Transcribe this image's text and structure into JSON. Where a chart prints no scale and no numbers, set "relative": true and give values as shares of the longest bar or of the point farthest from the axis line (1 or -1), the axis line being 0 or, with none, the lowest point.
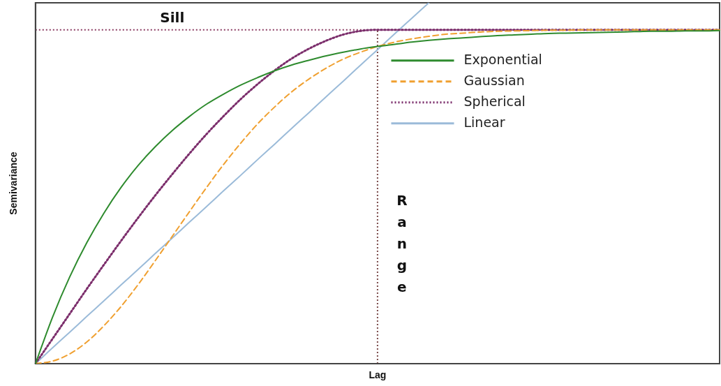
{
  "chart_data": {
    "type": "line",
    "relative": true,
    "xlabel": "Lag",
    "ylabel": "Semivariance",
    "grid": false,
    "marker": "none",
    "legend": "top right",
    "categories": [
      null,
      null,
      null,
      null,
      null,
      null,
      null,
      null,
      null,
      null,
      null,
      null,
      null,
      null,
      null,
      null,
      null,
      null,
      null,
      null,
      null,
      null,
      null,
      null,
      null,
      null,
      null,
      null,
      null,
      null,
      null,
      null,
      null,
      null,
      null,
      null,
      null,
      null,
      null,
      null,
      null
    ],
    "series": [
      {
        "name": "Exponential",
        "color": "#2e8b2e",
        "line_style": "solid",
        "values": [
          0,
          0.129,
          0.24,
          0.335,
          0.417,
          0.488,
          0.549,
          0.601,
          0.646,
          0.685,
          0.719,
          0.747,
          0.772,
          0.793,
          0.812,
          0.828,
          0.841,
          0.853,
          0.863,
          0.872,
          0.879,
          0.885,
          0.891,
          0.896,
          0.9,
          0.903,
          0.906,
          0.909,
          0.911,
          0.913,
          0.915,
          0.916,
          0.917,
          0.918,
          0.919,
          0.92,
          0.921,
          0.921,
          0.922,
          0.922,
          0.923
        ]
      },
      {
        "name": "Gaussian",
        "color": "#f0a030",
        "line_style": "dashed",
        "values": [
          0,
          0.007,
          0.027,
          0.06,
          0.105,
          0.158,
          0.219,
          0.285,
          0.353,
          0.421,
          0.488,
          0.552,
          0.611,
          0.665,
          0.712,
          0.754,
          0.789,
          0.819,
          0.844,
          0.863,
          0.879,
          0.891,
          0.9,
          0.907,
          0.913,
          0.916,
          0.919,
          0.921,
          0.922,
          0.923,
          0.924,
          0.924,
          0.925,
          0.925,
          0.925,
          0.925,
          0.925,
          0.925,
          0.925,
          0.925,
          0.925
        ]
      },
      {
        "name": "Spherical",
        "color": "#7b2d6b",
        "line_style": "dotted",
        "values": [
          0,
          0.069,
          0.138,
          0.207,
          0.274,
          0.34,
          0.404,
          0.466,
          0.525,
          0.582,
          0.636,
          0.686,
          0.733,
          0.775,
          0.813,
          0.846,
          0.873,
          0.895,
          0.912,
          0.922,
          0.925,
          0.925,
          0.925,
          0.925,
          0.925,
          0.925,
          0.925,
          0.925,
          0.925,
          0.925,
          0.925,
          0.925,
          0.925,
          0.925,
          0.925,
          0.925,
          0.925,
          0.925,
          0.925,
          0.925,
          0.925
        ]
      },
      {
        "name": "Linear",
        "color": "#9bbbd9",
        "line_style": "solid",
        "values": [
          0,
          0.044,
          0.087,
          0.131,
          0.174,
          0.218,
          0.261,
          0.305,
          0.348,
          0.392,
          0.435,
          0.479,
          0.522,
          0.566,
          0.609,
          0.653,
          0.696,
          0.74,
          0.783,
          0.827,
          0.87,
          0.914,
          0.957,
          1.0,
          null,
          null,
          null,
          null,
          null,
          null,
          null,
          null,
          null,
          null,
          null,
          null,
          null,
          null,
          null,
          null,
          null
        ]
      }
    ],
    "ref_lines": [
      {
        "axis": "y",
        "value": 0.925,
        "label": "Sill",
        "color": "#8b3a62",
        "line_style": "dotted"
      }
    ],
    "annotations": [
      "Range"
    ]
  }
}
